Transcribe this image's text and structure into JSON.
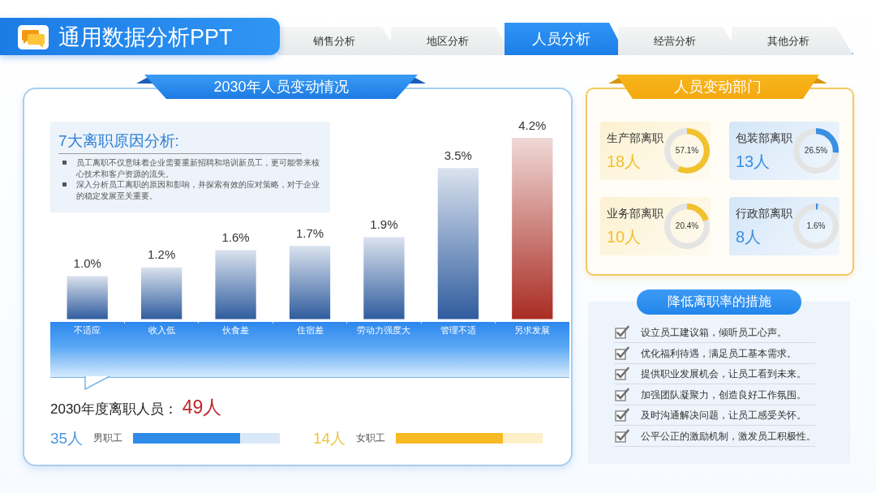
{
  "chart_data": [
    {
      "type": "other",
      "title": "通用数据分析PPT",
      "annotations": [
        "销售分析",
        "地区分析",
        "人员分析",
        "经营分析",
        "其他分析"
      ]
    },
    {
      "type": "bar",
      "title": "2030年人员变动情况",
      "categories": [
        "不适应",
        "收入低",
        "伙食差",
        "住宿差",
        "劳动力强度大",
        "管理不适",
        "另求发展"
      ],
      "values": [
        1.0,
        1.2,
        1.6,
        1.7,
        1.9,
        3.5,
        4.2
      ],
      "colors": [
        "#2f5c9e",
        "#2f5c9e",
        "#2f5c9e",
        "#2f5c9e",
        "#2f5c9e",
        "#2f5c9e",
        "#a92c23"
      ],
      "value_labels": [
        "1.0%",
        "1.2%",
        "1.6%",
        "1.7%",
        "1.9%",
        "3.5%",
        "4.2%"
      ],
      "tick_labels": "x",
      "annotations": [
        "7大离职原因分析:",
        "员工离职不仅意味着企业需要重新招聘和培训新员工，更可能带来核心技术和客户资源的流失。",
        "深入分析员工离职的原因和影响，并探索有效的应对策略，对于企业的稳定发展至关重要。",
        "2030年度离职人员：",
        "49人",
        "35人",
        "男职工",
        "14人",
        "女职工"
      ]
    },
    {
      "type": "other",
      "title": "人员变动部门"
    },
    {
      "type": "donut",
      "title": "生产部离职",
      "annotations": [
        "18人"
      ],
      "categories": [
        null,
        null
      ],
      "values": [
        57.1,
        42.9
      ],
      "colors": [
        "#f2c12e",
        "#e4e4e4"
      ],
      "value_labels": [
        "57.1%",
        null
      ]
    },
    {
      "type": "donut",
      "title": "包装部离职",
      "annotations": [
        "13人"
      ],
      "categories": [
        null,
        null
      ],
      "values": [
        26.5,
        73.5
      ],
      "colors": [
        "#3a8fe0",
        "#e4e4e4"
      ],
      "value_labels": [
        "26.5%",
        null
      ]
    },
    {
      "type": "donut",
      "title": "业务部离职",
      "annotations": [
        "10人"
      ],
      "categories": [
        null,
        null
      ],
      "values": [
        20.4,
        79.6
      ],
      "colors": [
        "#f2c12e",
        "#e4e4e4"
      ],
      "value_labels": [
        "20.4%",
        null
      ]
    },
    {
      "type": "donut",
      "title": "行政部离职",
      "annotations": [
        "8人"
      ],
      "categories": [
        null,
        null
      ],
      "values": [
        1.6,
        98.4
      ],
      "colors": [
        "#3a8fe0",
        "#e4e4e4"
      ],
      "value_labels": [
        "1.6%",
        null
      ]
    },
    {
      "type": "other",
      "title": "降低离职率的措施",
      "annotations": [
        "设立员工建议箱，倾听员工心声。",
        "优化福利待遇，满足员工基本需求。",
        "提供职业发展机会，让员工看到未来。",
        "加强团队凝聚力，创造良好工作氛围。",
        "及时沟通解决问题，让员工感受关怀。",
        "公平公正的激励机制，激发员工积极性。"
      ]
    }
  ]
}
